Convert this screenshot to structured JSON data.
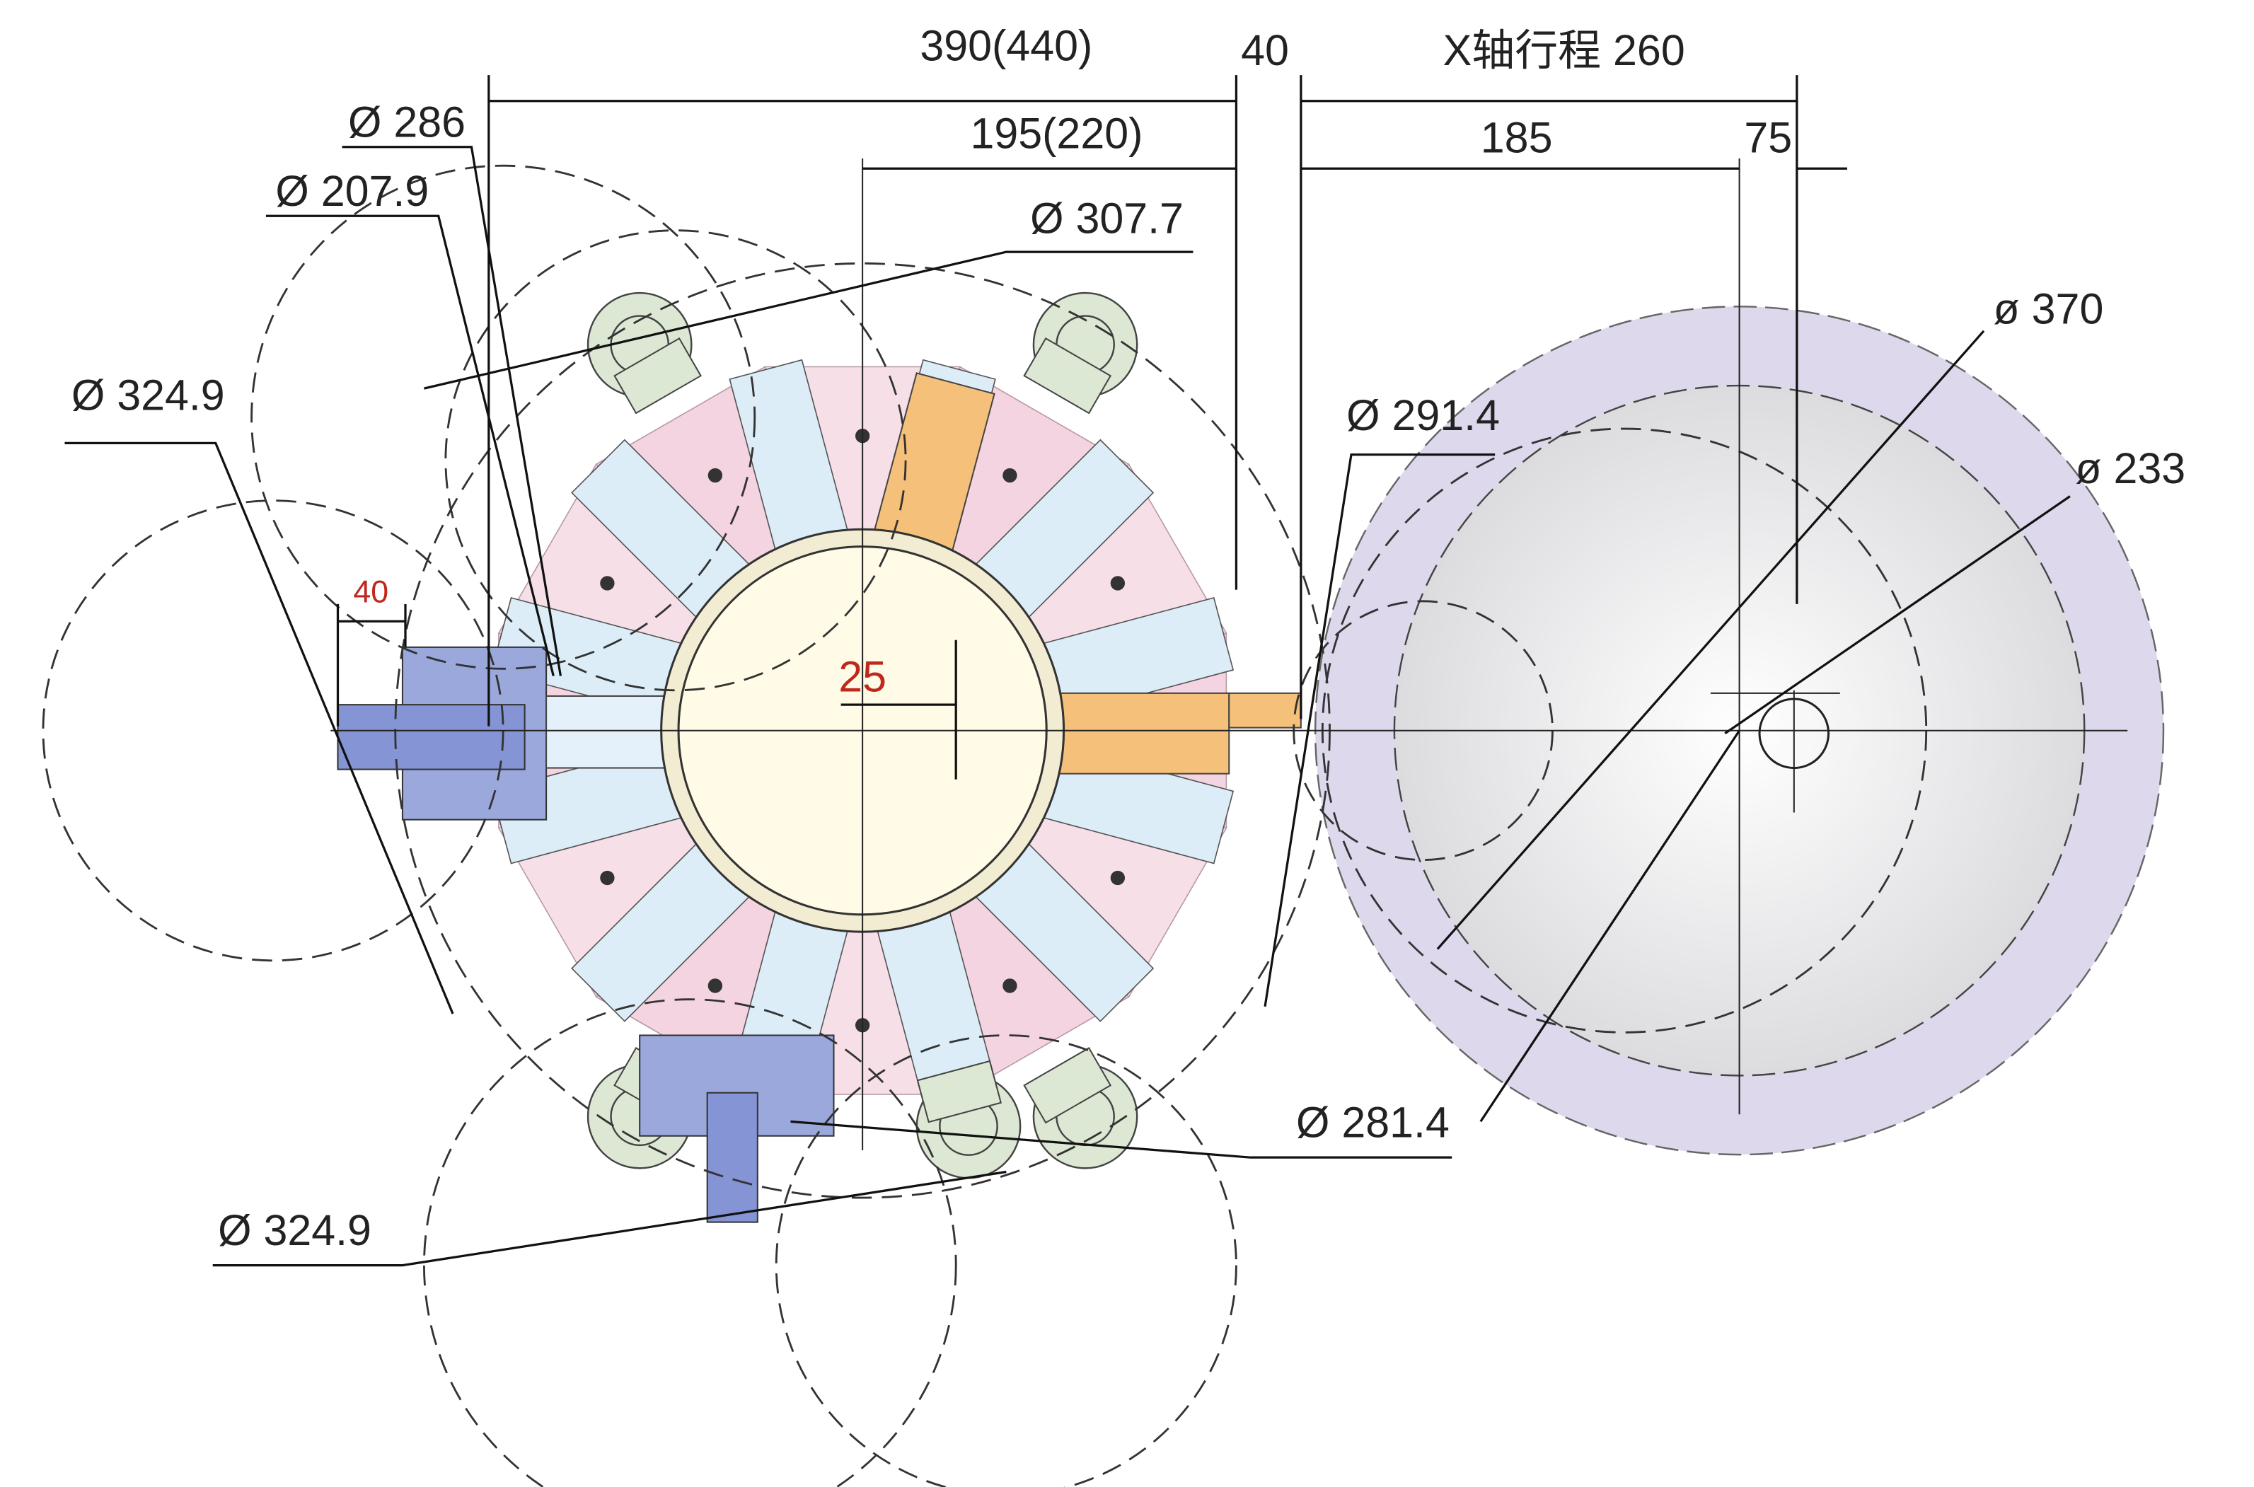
{
  "dimensions": {
    "total_width": "390(440)",
    "clearance": "40",
    "x_travel": "X轴行程 260",
    "half_width": "195(220)",
    "to_spindle": "185",
    "spindle_offset": "75",
    "tool_protrusion": "40",
    "center_offset": "25"
  },
  "diameters": {
    "d286": "Ø 286",
    "d207": "Ø 207.9",
    "d307": "Ø 307.7",
    "d324_left": "Ø 324.9",
    "d291": "Ø 291.4",
    "d370": "ø 370",
    "d233": "ø 233",
    "d281": "Ø 281.4",
    "d324_bottom": "Ø 324.9"
  }
}
